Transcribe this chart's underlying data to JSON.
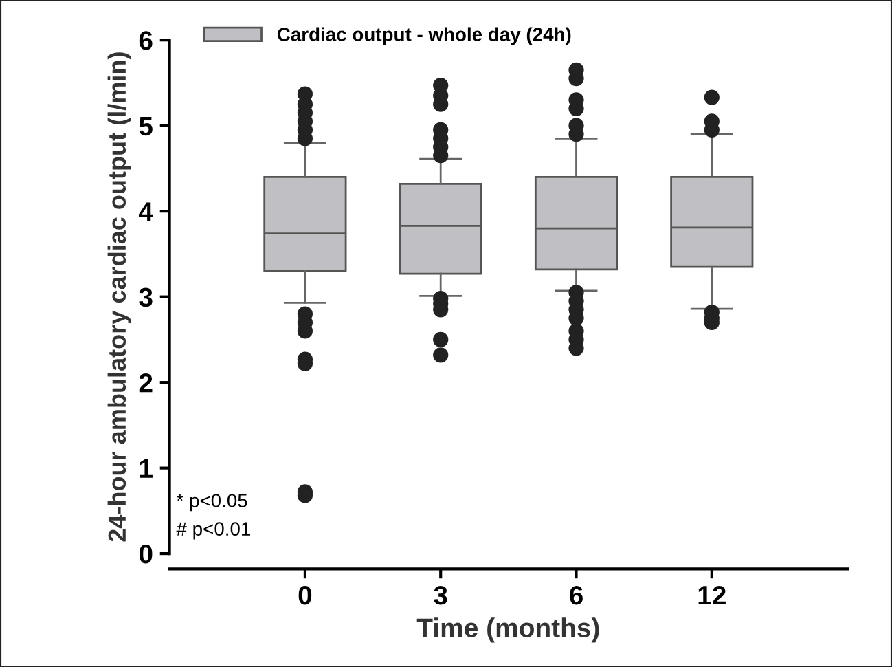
{
  "chart_data": {
    "type": "box",
    "xlabel": "Time (months)",
    "ylabel": "24-hour ambulatory cardiac output (l/min)",
    "categories": [
      "0",
      "3",
      "6",
      "12"
    ],
    "series": [
      {
        "name": "Cardiac output - whole day (24h)",
        "color": "#c0c0c4",
        "boxes": [
          {
            "low": 2.93,
            "q1": 3.3,
            "median": 3.74,
            "q3": 4.4,
            "high": 4.8,
            "outliers": [
              4.85,
              4.95,
              5.05,
              5.15,
              5.25,
              5.37,
              2.8,
              2.7,
              2.6,
              2.27,
              2.22,
              0.72,
              0.68
            ]
          },
          {
            "low": 3.01,
            "q1": 3.27,
            "median": 3.83,
            "q3": 4.32,
            "high": 4.61,
            "outliers": [
              4.65,
              4.75,
              4.85,
              4.95,
              5.25,
              5.35,
              5.47,
              2.98,
              2.92,
              2.85,
              2.5,
              2.32
            ]
          },
          {
            "low": 3.07,
            "q1": 3.32,
            "median": 3.8,
            "q3": 4.4,
            "high": 4.85,
            "outliers": [
              4.9,
              5.0,
              5.2,
              5.3,
              5.55,
              5.65,
              3.05,
              2.95,
              2.85,
              2.75,
              2.6,
              2.5,
              2.4
            ]
          },
          {
            "low": 2.86,
            "q1": 3.35,
            "median": 3.81,
            "q3": 4.4,
            "high": 4.9,
            "outliers": [
              4.95,
              5.05,
              5.33,
              2.82,
              2.75,
              2.7
            ]
          }
        ]
      }
    ],
    "ylim": [
      0,
      6
    ],
    "yticks": [
      0,
      1,
      2,
      3,
      4,
      5,
      6
    ],
    "grid": false,
    "legend": "top left",
    "annotations": [
      "* p<0.05",
      "# p<0.01"
    ]
  }
}
